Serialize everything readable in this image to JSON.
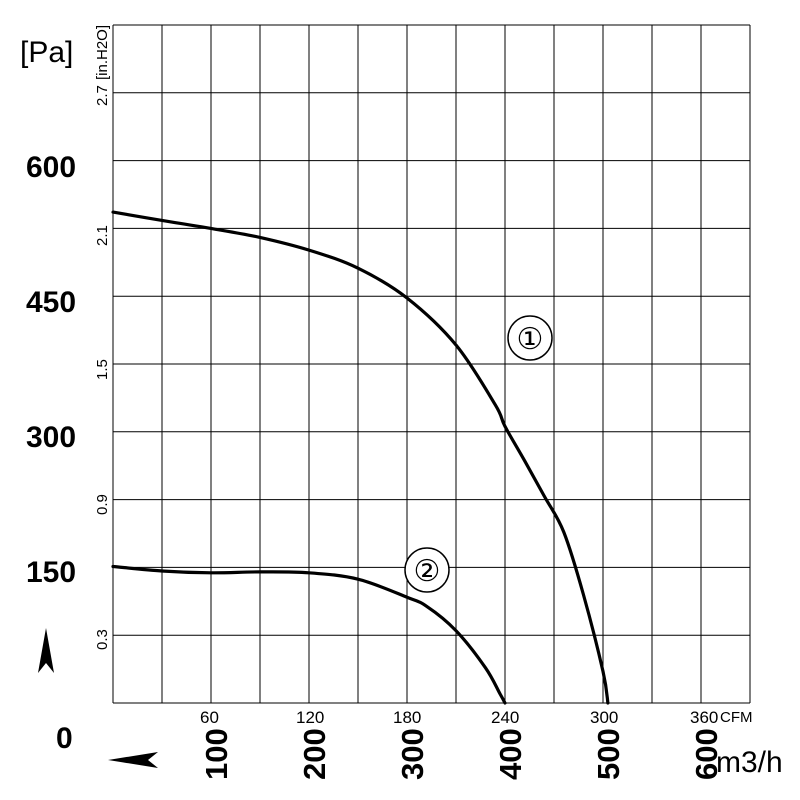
{
  "chart_data": {
    "type": "line",
    "left_axis": {
      "unit": "[Pa]",
      "ticks": [
        "0",
        "150",
        "300",
        "450",
        "600"
      ],
      "range": [
        0,
        750
      ]
    },
    "inner_axis": {
      "unit": "[in.H2O]",
      "ticks": [
        "0.3",
        "0.9",
        "1.5",
        "2.1",
        "2.7"
      ]
    },
    "bottom_axis_cfm": {
      "unit": "CFM",
      "ticks": [
        "60",
        "120",
        "180",
        "240",
        "300",
        "360"
      ]
    },
    "bottom_axis_m3h": {
      "unit": "m3/h",
      "ticks": [
        "100",
        "200",
        "300",
        "400",
        "500",
        "600"
      ],
      "range": [
        0,
        650
      ]
    },
    "series": [
      {
        "name": "①",
        "points": [
          [
            0,
            543
          ],
          [
            60,
            532
          ],
          [
            100,
            525
          ],
          [
            150,
            515
          ],
          [
            200,
            501
          ],
          [
            250,
            481
          ],
          [
            300,
            448
          ],
          [
            350,
            396
          ],
          [
            390,
            330
          ],
          [
            400,
            306
          ],
          [
            420,
            268
          ],
          [
            440,
            229
          ],
          [
            460,
            189
          ],
          [
            480,
            120
          ],
          [
            500,
            35
          ],
          [
            505,
            0
          ]
        ]
      },
      {
        "name": "②",
        "points": [
          [
            0,
            151
          ],
          [
            50,
            146
          ],
          [
            100,
            144
          ],
          [
            150,
            145
          ],
          [
            200,
            144
          ],
          [
            250,
            137
          ],
          [
            300,
            117
          ],
          [
            320,
            107
          ],
          [
            350,
            80
          ],
          [
            380,
            39
          ],
          [
            395,
            10
          ],
          [
            400,
            0
          ]
        ]
      }
    ],
    "grid": true
  },
  "indicators": {
    "up_arrow_icon": "up-arrow",
    "right_arrow_icon": "right-arrow"
  }
}
